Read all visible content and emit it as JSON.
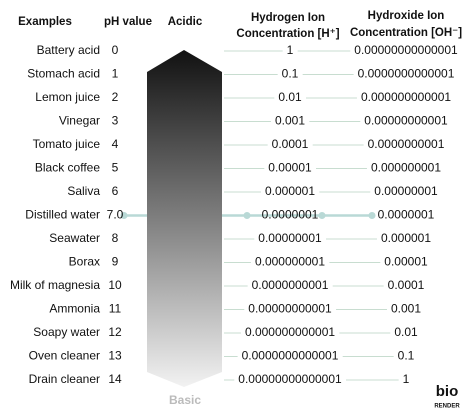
{
  "header": {
    "examples": "Examples",
    "ph_value": "pH value",
    "acidic": "Acidic",
    "hydrogen": [
      "Hydrogen Ion",
      "Concentration [H⁺]"
    ],
    "hydroxide": [
      "Hydroxide Ion",
      "Concentration [OH⁻]"
    ]
  },
  "rows": [
    {
      "example": "Battery acid",
      "ph": "0",
      "h": "1",
      "oh": "0.00000000000001"
    },
    {
      "example": "Stomach acid",
      "ph": "1",
      "h": "0.1",
      "oh": "0.0000000000001"
    },
    {
      "example": "Lemon juice",
      "ph": "2",
      "h": "0.01",
      "oh": "0.000000000001"
    },
    {
      "example": "Vinegar",
      "ph": "3",
      "h": "0.001",
      "oh": "0.00000000001"
    },
    {
      "example": "Tomato juice",
      "ph": "4",
      "h": "0.0001",
      "oh": "0.0000000001"
    },
    {
      "example": "Black coffee",
      "ph": "5",
      "h": "0.00001",
      "oh": "0.000000001"
    },
    {
      "example": "Saliva",
      "ph": "6",
      "h": "0.000001",
      "oh": "0.00000001"
    },
    {
      "example": "Distilled water",
      "ph": "7.0",
      "h": "0.0000001",
      "oh": "0.0000001"
    },
    {
      "example": "Seawater",
      "ph": "8",
      "h": "0.00000001",
      "oh": "0.000001"
    },
    {
      "example": "Borax",
      "ph": "9",
      "h": "0.000000001",
      "oh": "0.00001"
    },
    {
      "example": "Milk of magnesia",
      "ph": "10",
      "h": "0.0000000001",
      "oh": "0.0001"
    },
    {
      "example": "Ammonia",
      "ph": "11",
      "h": "0.00000000001",
      "oh": "0.001"
    },
    {
      "example": "Soapy water",
      "ph": "12",
      "h": "0.000000000001",
      "oh": "0.01"
    },
    {
      "example": "Oven cleaner",
      "ph": "13",
      "h": "0.0000000000001",
      "oh": "0.1"
    },
    {
      "example": "Drain cleaner",
      "ph": "14",
      "h": "0.00000000000001",
      "oh": "1"
    }
  ],
  "footer": {
    "basic": "Basic",
    "logo": "bio",
    "logo2": "RENDER"
  }
}
